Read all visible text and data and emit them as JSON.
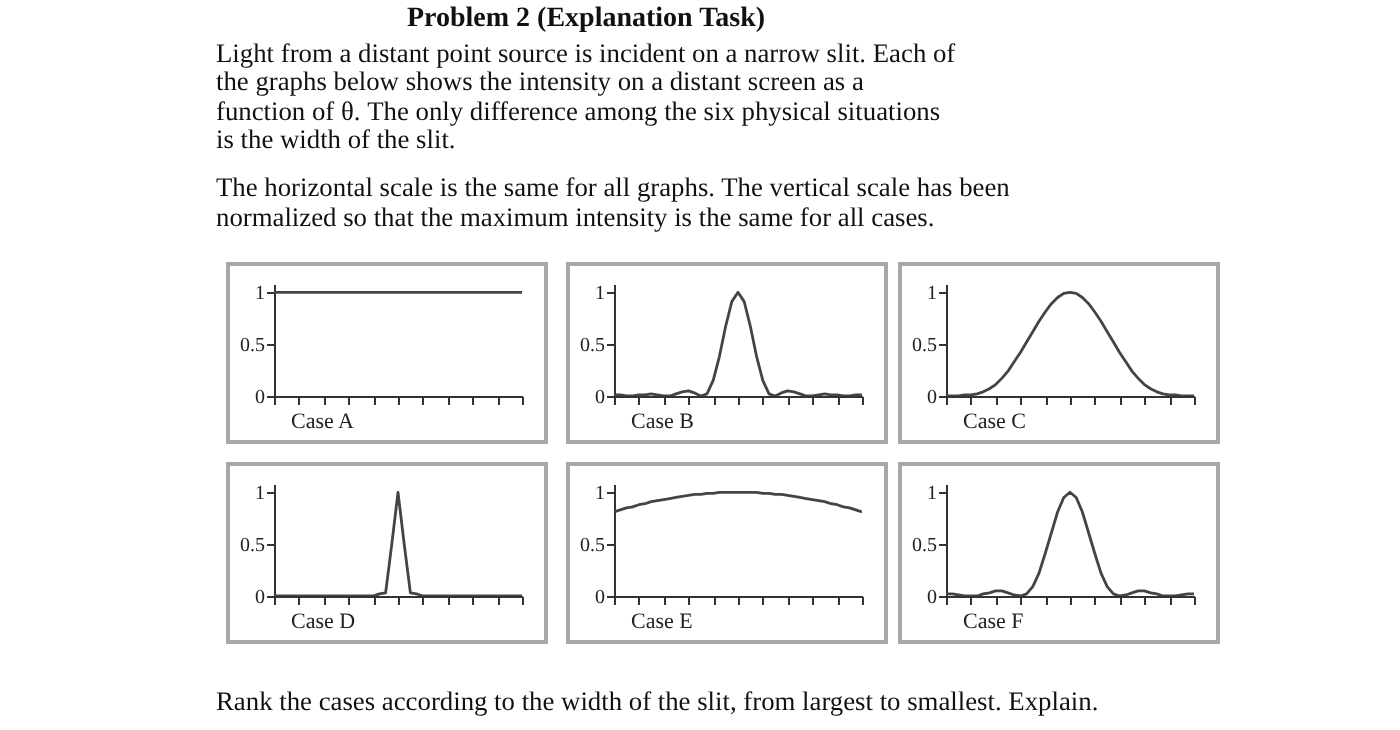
{
  "chart_data": [
    {
      "type": "other",
      "title": "Problem 2 (Explanation Task)",
      "annotations": [
        "Light from a distant point source is incident on a narrow slit.  Each of the graphs below shows the intensity on a distant screen as a function of θ.  The only difference among the six physical situations is the width of the slit.",
        "The horizontal scale is the same for all graphs.  The vertical scale has been normalized so that the maximum intensity is the same for all cases."
      ]
    },
    {
      "type": "line",
      "xlabel": "Case A",
      "categories": [
        null,
        null,
        null,
        null,
        null,
        null,
        null,
        null,
        null,
        null,
        null,
        null,
        null,
        null,
        null,
        null,
        null,
        null,
        null,
        null,
        null,
        null,
        null,
        null,
        null,
        null,
        null,
        null,
        null,
        null,
        null,
        null,
        null,
        null,
        null,
        null,
        null,
        null,
        null,
        null,
        null
      ],
      "series": [
        {
          "color": "#444444",
          "values": [
            1,
            1,
            1,
            1,
            1,
            1,
            1,
            1,
            1,
            1,
            1,
            1,
            1,
            1,
            1,
            1,
            1,
            1,
            1,
            1,
            1,
            1,
            1,
            1,
            1,
            1,
            1,
            1,
            1,
            1,
            1,
            1,
            1,
            1,
            1,
            1,
            1,
            1,
            1,
            1,
            1
          ]
        }
      ],
      "ylim": [
        0,
        1.08
      ],
      "yticks": [
        0,
        0.5,
        1
      ],
      "tick_labels": "y",
      "marker": "none"
    },
    {
      "type": "line",
      "xlabel": "Case B",
      "categories": [
        null,
        null,
        null,
        null,
        null,
        null,
        null,
        null,
        null,
        null,
        null,
        null,
        null,
        null,
        null,
        null,
        null,
        null,
        null,
        null,
        null,
        null,
        null,
        null,
        null,
        null,
        null,
        null,
        null,
        null,
        null,
        null,
        null,
        null,
        null,
        null,
        null,
        null,
        null,
        null,
        null
      ],
      "series": [
        {
          "color": "#444444",
          "values": [
            0.01,
            0.01,
            0,
            0,
            0.01,
            0.01,
            0.02,
            0.01,
            0,
            0,
            0.02,
            0.04,
            0.05,
            0.03,
            0,
            0.02,
            0.15,
            0.38,
            0.67,
            0.91,
            1,
            0.91,
            0.67,
            0.38,
            0.15,
            0.02,
            0,
            0.03,
            0.05,
            0.04,
            0.02,
            0,
            0,
            0.01,
            0.02,
            0.01,
            0.01,
            0,
            0,
            0.01,
            0.01
          ]
        }
      ],
      "ylim": [
        0,
        1.08
      ],
      "yticks": [
        0,
        0.5,
        1
      ],
      "tick_labels": "y",
      "marker": "none"
    },
    {
      "type": "line",
      "xlabel": "Case C",
      "categories": [
        null,
        null,
        null,
        null,
        null,
        null,
        null,
        null,
        null,
        null,
        null,
        null,
        null,
        null,
        null,
        null,
        null,
        null,
        null,
        null,
        null,
        null,
        null,
        null,
        null,
        null,
        null,
        null,
        null,
        null,
        null,
        null,
        null,
        null,
        null,
        null,
        null,
        null,
        null,
        null,
        null
      ],
      "series": [
        {
          "color": "#444444",
          "values": [
            0,
            0,
            0,
            0.01,
            0.01,
            0.02,
            0.04,
            0.07,
            0.11,
            0.17,
            0.24,
            0.33,
            0.42,
            0.52,
            0.62,
            0.72,
            0.81,
            0.89,
            0.95,
            0.99,
            1,
            0.99,
            0.95,
            0.89,
            0.81,
            0.72,
            0.62,
            0.52,
            0.42,
            0.33,
            0.24,
            0.17,
            0.11,
            0.07,
            0.04,
            0.02,
            0.01,
            0.01,
            0,
            0,
            0
          ]
        }
      ],
      "ylim": [
        0,
        1.08
      ],
      "yticks": [
        0,
        0.5,
        1
      ],
      "tick_labels": "y",
      "marker": "none"
    },
    {
      "type": "line",
      "xlabel": "Case D",
      "categories": [
        null,
        null,
        null,
        null,
        null,
        null,
        null,
        null,
        null,
        null,
        null,
        null,
        null,
        null,
        null,
        null,
        null,
        null,
        null,
        null,
        null,
        null,
        null,
        null,
        null,
        null,
        null,
        null,
        null,
        null,
        null,
        null,
        null,
        null,
        null,
        null,
        null,
        null,
        null,
        null,
        null
      ],
      "series": [
        {
          "color": "#444444",
          "values": [
            0,
            0,
            0,
            0,
            0,
            0,
            0,
            0,
            0,
            0,
            0,
            0,
            0,
            0,
            0,
            0,
            0,
            0.02,
            0.03,
            0.5,
            1,
            0.5,
            0.03,
            0.02,
            0,
            0,
            0,
            0,
            0,
            0,
            0,
            0,
            0,
            0,
            0,
            0,
            0,
            0,
            0,
            0,
            0
          ]
        }
      ],
      "ylim": [
        0,
        1.08
      ],
      "yticks": [
        0,
        0.5,
        1
      ],
      "tick_labels": "y",
      "marker": "none"
    },
    {
      "type": "line",
      "xlabel": "Case E",
      "categories": [
        null,
        null,
        null,
        null,
        null,
        null,
        null,
        null,
        null,
        null,
        null,
        null,
        null,
        null,
        null,
        null,
        null,
        null,
        null,
        null,
        null,
        null,
        null,
        null,
        null,
        null,
        null,
        null,
        null,
        null,
        null,
        null,
        null,
        null,
        null,
        null,
        null,
        null,
        null,
        null,
        null
      ],
      "series": [
        {
          "color": "#444444",
          "values": [
            0.81,
            0.83,
            0.85,
            0.86,
            0.88,
            0.89,
            0.91,
            0.92,
            0.93,
            0.94,
            0.95,
            0.96,
            0.97,
            0.98,
            0.98,
            0.99,
            0.99,
            1,
            1,
            1,
            1,
            1,
            1,
            1,
            0.99,
            0.99,
            0.98,
            0.98,
            0.97,
            0.96,
            0.95,
            0.94,
            0.93,
            0.92,
            0.91,
            0.89,
            0.88,
            0.86,
            0.85,
            0.83,
            0.81
          ]
        }
      ],
      "ylim": [
        0,
        1.08
      ],
      "yticks": [
        0,
        0.5,
        1
      ],
      "tick_labels": "y",
      "marker": "none"
    },
    {
      "type": "line",
      "xlabel": "Case F",
      "categories": [
        null,
        null,
        null,
        null,
        null,
        null,
        null,
        null,
        null,
        null,
        null,
        null,
        null,
        null,
        null,
        null,
        null,
        null,
        null,
        null,
        null,
        null,
        null,
        null,
        null,
        null,
        null,
        null,
        null,
        null,
        null,
        null,
        null,
        null,
        null,
        null,
        null,
        null,
        null,
        null,
        null
      ],
      "series": [
        {
          "color": "#444444",
          "values": [
            0.02,
            0.02,
            0.01,
            0,
            0,
            0,
            0.02,
            0.03,
            0.05,
            0.05,
            0.03,
            0.01,
            0,
            0.02,
            0.09,
            0.22,
            0.41,
            0.61,
            0.81,
            0.95,
            1,
            0.95,
            0.81,
            0.61,
            0.41,
            0.22,
            0.09,
            0.02,
            0,
            0.01,
            0.03,
            0.05,
            0.05,
            0.03,
            0.02,
            0,
            0,
            0,
            0.01,
            0.02,
            0.02
          ]
        }
      ],
      "ylim": [
        0,
        1.08
      ],
      "yticks": [
        0,
        0.5,
        1
      ],
      "tick_labels": "y",
      "marker": "none"
    },
    {
      "type": "other",
      "annotations": [
        "Rank the cases according to the width of the slit, from largest to smallest.  Explain."
      ]
    }
  ]
}
